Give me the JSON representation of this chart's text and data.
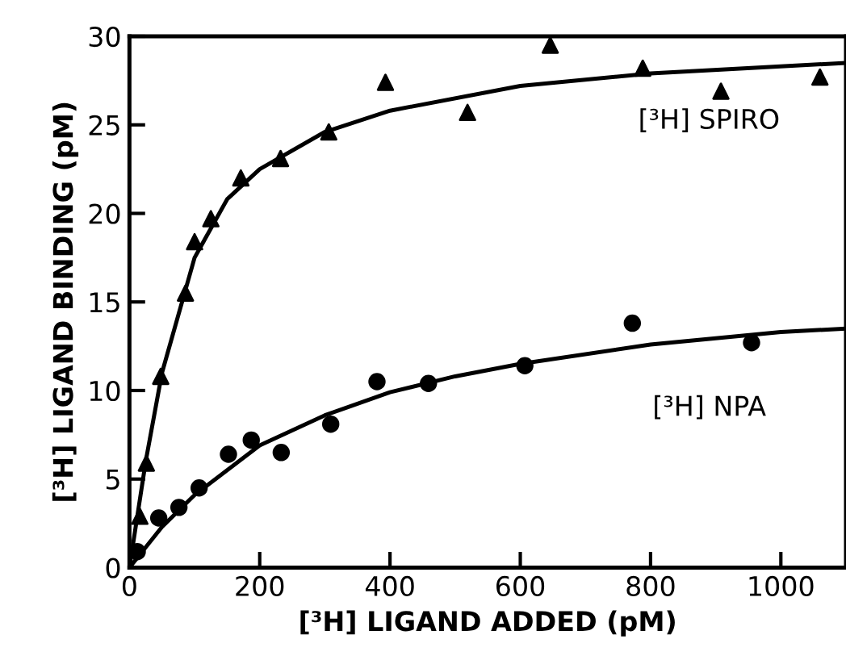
{
  "chart_data": {
    "type": "scatter",
    "xlabel": "[³H] LIGAND ADDED (pM)",
    "ylabel": "[³H] LIGAND BINDING (pM)",
    "xlim": [
      0,
      1100
    ],
    "ylim": [
      0,
      30
    ],
    "xticks": [
      0,
      200,
      400,
      600,
      800,
      1000
    ],
    "yticks": [
      0,
      5,
      10,
      15,
      20,
      25,
      30
    ],
    "grid": false,
    "legend": false,
    "series": [
      {
        "name": "[³H] SPIRO",
        "marker": "triangle",
        "color": "#000000",
        "x": [
          16,
          26,
          48,
          86,
          100,
          125,
          171,
          232,
          306,
          393,
          519,
          646,
          788,
          908,
          1060
        ],
        "values": [
          2.9,
          5.9,
          10.8,
          15.5,
          18.4,
          19.7,
          22,
          23.1,
          24.6,
          27.4,
          25.7,
          29.5,
          28.2,
          26.9,
          27.7
        ]
      },
      {
        "name": "[³H] NPA",
        "marker": "circle",
        "color": "#000000",
        "x": [
          12,
          45,
          76,
          107,
          152,
          187,
          233,
          309,
          380,
          459,
          607,
          772,
          955
        ],
        "values": [
          0.9,
          2.8,
          3.4,
          4.5,
          6.4,
          7.2,
          6.5,
          8.1,
          10.5,
          10.4,
          11.4,
          13.8,
          12.7
        ]
      },
      {
        "type": "line",
        "marker": "none",
        "line_style": "solid",
        "color": "#000000",
        "x": [
          0,
          25,
          50,
          100,
          150,
          200,
          300,
          400,
          600,
          800,
          1000,
          1100
        ],
        "values": [
          0,
          6,
          11,
          17.5,
          20.8,
          22.5,
          24.6,
          25.8,
          27.2,
          27.9,
          28.3,
          28.5
        ]
      },
      {
        "type": "line",
        "marker": "none",
        "line_style": "solid",
        "color": "#000000",
        "x": [
          0,
          50,
          100,
          200,
          300,
          400,
          500,
          600,
          800,
          1000,
          1100
        ],
        "values": [
          0,
          2.3,
          4.1,
          6.9,
          8.6,
          9.9,
          10.8,
          11.5,
          12.6,
          13.3,
          13.5
        ]
      }
    ]
  }
}
